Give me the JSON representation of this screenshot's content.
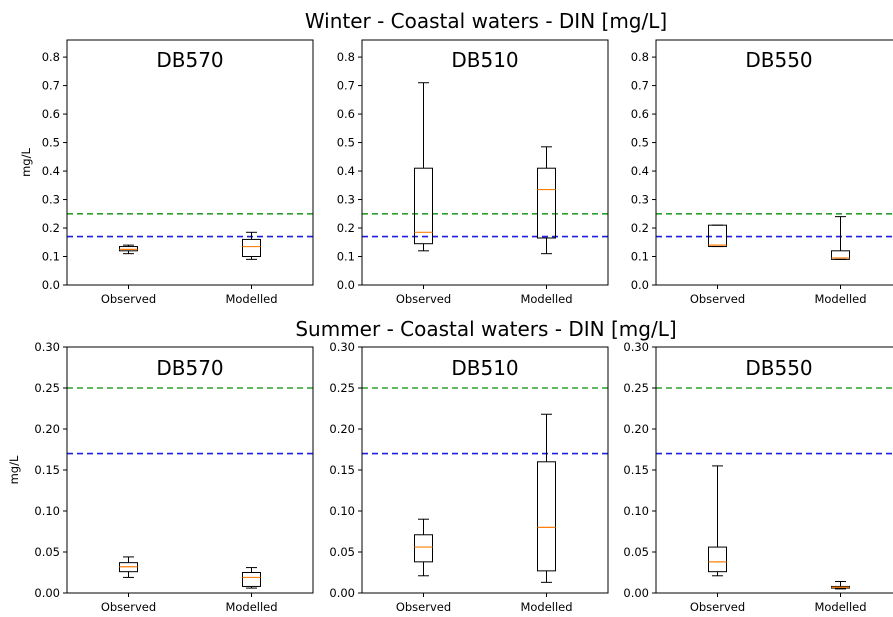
{
  "chart_data": [
    {
      "type": "box",
      "title": "Winter - Coastal waters - DIN [mg/L]",
      "ylabel": "mg/L",
      "ylim": [
        0,
        0.86
      ],
      "yticks": [
        "0.0",
        "0.1",
        "0.2",
        "0.3",
        "0.4",
        "0.5",
        "0.6",
        "0.7",
        "0.8"
      ],
      "categories": [
        "Observed",
        "Modelled"
      ],
      "reference_lines": [
        {
          "value": 0.25,
          "color": "#2ca02c",
          "style": "dashed"
        },
        {
          "value": 0.17,
          "color": "#1f1fe0",
          "style": "dashed"
        }
      ],
      "panels": [
        {
          "title": "DB570",
          "boxes": [
            {
              "category": "Observed",
              "whislo": 0.11,
              "q1": 0.12,
              "med": 0.125,
              "q3": 0.135,
              "whishi": 0.14
            },
            {
              "category": "Modelled",
              "whislo": 0.09,
              "q1": 0.1,
              "med": 0.135,
              "q3": 0.16,
              "whishi": 0.185
            }
          ]
        },
        {
          "title": "DB510",
          "boxes": [
            {
              "category": "Observed",
              "whislo": 0.12,
              "q1": 0.145,
              "med": 0.185,
              "q3": 0.41,
              "whishi": 0.71
            },
            {
              "category": "Modelled",
              "whislo": 0.11,
              "q1": 0.165,
              "med": 0.335,
              "q3": 0.41,
              "whishi": 0.485
            }
          ]
        },
        {
          "title": "DB550",
          "boxes": [
            {
              "category": "Observed",
              "whislo": 0.135,
              "q1": 0.135,
              "med": 0.14,
              "q3": 0.21,
              "whishi": 0.21
            },
            {
              "category": "Modelled",
              "whislo": 0.09,
              "q1": 0.09,
              "med": 0.095,
              "q3": 0.12,
              "whishi": 0.24
            }
          ]
        }
      ]
    },
    {
      "type": "box",
      "title": "Summer - Coastal waters - DIN [mg/L]",
      "ylabel": "mg/L",
      "ylim": [
        0,
        0.3
      ],
      "yticks": [
        "0.00",
        "0.05",
        "0.10",
        "0.15",
        "0.20",
        "0.25",
        "0.30"
      ],
      "categories": [
        "Observed",
        "Modelled"
      ],
      "reference_lines": [
        {
          "value": 0.25,
          "color": "#2ca02c",
          "style": "dashed"
        },
        {
          "value": 0.17,
          "color": "#1f1fe0",
          "style": "dashed"
        }
      ],
      "panels": [
        {
          "title": "DB570",
          "boxes": [
            {
              "category": "Observed",
              "whislo": 0.019,
              "q1": 0.026,
              "med": 0.032,
              "q3": 0.037,
              "whishi": 0.044
            },
            {
              "category": "Modelled",
              "whislo": 0.006,
              "q1": 0.008,
              "med": 0.019,
              "q3": 0.025,
              "whishi": 0.031
            }
          ]
        },
        {
          "title": "DB510",
          "boxes": [
            {
              "category": "Observed",
              "whislo": 0.021,
              "q1": 0.038,
              "med": 0.056,
              "q3": 0.071,
              "whishi": 0.09
            },
            {
              "category": "Modelled",
              "whislo": 0.013,
              "q1": 0.027,
              "med": 0.08,
              "q3": 0.16,
              "whishi": 0.218
            }
          ]
        },
        {
          "title": "DB550",
          "boxes": [
            {
              "category": "Observed",
              "whislo": 0.021,
              "q1": 0.026,
              "med": 0.038,
              "q3": 0.056,
              "whishi": 0.155
            },
            {
              "category": "Modelled",
              "whislo": 0.005,
              "q1": 0.006,
              "med": 0.007,
              "q3": 0.008,
              "whishi": 0.014
            }
          ]
        }
      ]
    }
  ],
  "colors": {
    "median": "#ff7f0e",
    "box": "#000000",
    "axes": "#000000"
  }
}
